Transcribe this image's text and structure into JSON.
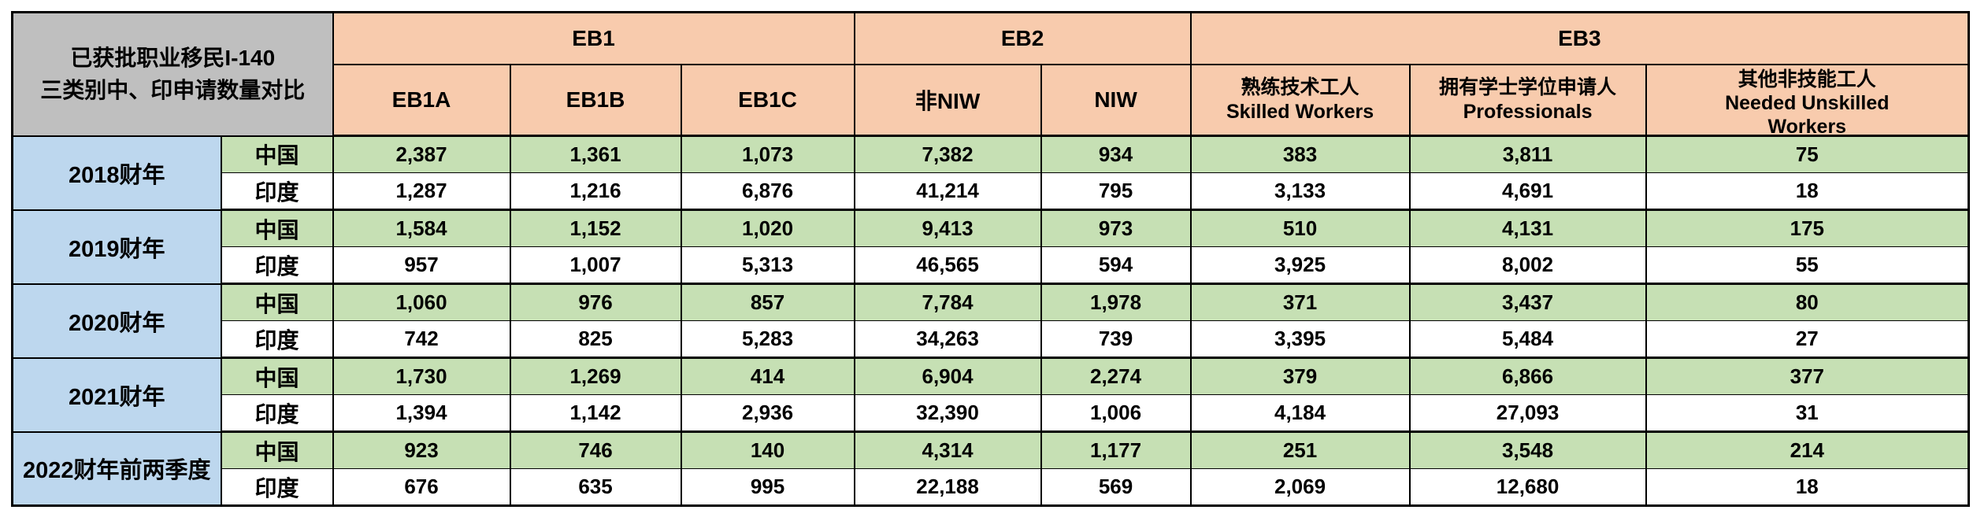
{
  "title": {
    "line1": "已获批职业移民I-140",
    "line2": "三类别中、印申请数量对比"
  },
  "header": {
    "groups": [
      {
        "label": "EB1"
      },
      {
        "label": "EB2"
      },
      {
        "label": "EB3"
      }
    ],
    "columns": [
      {
        "line1": "EB1A"
      },
      {
        "line1": "EB1B"
      },
      {
        "line1": "EB1C"
      },
      {
        "line1": "非NIW"
      },
      {
        "line1": "NIW"
      },
      {
        "line1": "熟练技术工人",
        "line2": "Skilled Workers"
      },
      {
        "line1": "拥有学士学位申请人",
        "line2": "Professionals"
      },
      {
        "line1": "其他非技能工人",
        "line2": "Needed Unskilled",
        "line3": "Workers",
        "note": "third line clipped by cell edge"
      }
    ]
  },
  "labels": {
    "china": "中国",
    "india": "印度"
  },
  "years": [
    {
      "label": "2018财年",
      "china": [
        "2,387",
        "1,361",
        "1,073",
        "7,382",
        "934",
        "383",
        "3,811",
        "75"
      ],
      "india": [
        "1,287",
        "1,216",
        "6,876",
        "41,214",
        "795",
        "3,133",
        "4,691",
        "18"
      ]
    },
    {
      "label": "2019财年",
      "china": [
        "1,584",
        "1,152",
        "1,020",
        "9,413",
        "973",
        "510",
        "4,131",
        "175"
      ],
      "india": [
        "957",
        "1,007",
        "5,313",
        "46,565",
        "594",
        "3,925",
        "8,002",
        "55"
      ]
    },
    {
      "label": "2020财年",
      "china": [
        "1,060",
        "976",
        "857",
        "7,784",
        "1,978",
        "371",
        "3,437",
        "80"
      ],
      "india": [
        "742",
        "825",
        "5,283",
        "34,263",
        "739",
        "3,395",
        "5,484",
        "27"
      ]
    },
    {
      "label": "2021财年",
      "china": [
        "1,730",
        "1,269",
        "414",
        "6,904",
        "2,274",
        "379",
        "6,866",
        "377"
      ],
      "india": [
        "1,394",
        "1,142",
        "2,936",
        "32,390",
        "1,006",
        "4,184",
        "27,093",
        "31"
      ]
    },
    {
      "label": "2022财年前两季度",
      "china": [
        "923",
        "746",
        "140",
        "4,314",
        "1,177",
        "251",
        "3,548",
        "214"
      ],
      "india": [
        "676",
        "635",
        "995",
        "22,188",
        "569",
        "2,069",
        "12,680",
        "18"
      ]
    }
  ],
  "colors": {
    "header_peach": "#F8CBAD",
    "corner_gray": "#BFBFBF",
    "year_blue": "#BDD7EE",
    "china_green": "#C6E0B4",
    "india_white": "#FFFFFF",
    "border_black": "#000000"
  }
}
